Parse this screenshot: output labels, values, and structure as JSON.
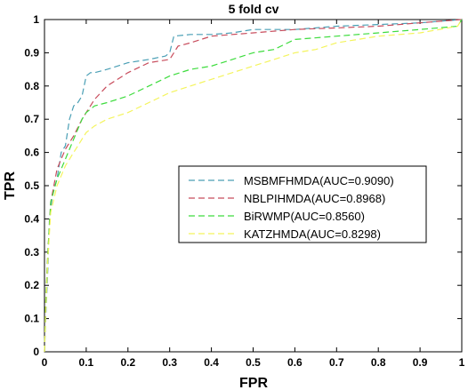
{
  "chart_data": {
    "type": "line",
    "title": "5 fold cv",
    "xlabel": "FPR",
    "ylabel": "TPR",
    "xlim": [
      0,
      1
    ],
    "ylim": [
      0,
      1
    ],
    "x_ticks": [
      "0",
      "0.1",
      "0.2",
      "0.3",
      "0.4",
      "0.5",
      "0.6",
      "0.7",
      "0.8",
      "0.9",
      "1"
    ],
    "y_ticks": [
      "0",
      "0.1",
      "0.2",
      "0.3",
      "0.4",
      "0.5",
      "0.6",
      "0.7",
      "0.8",
      "0.9",
      "1"
    ],
    "grid": false,
    "legend_position": "center-right",
    "series": [
      {
        "name": "MSBMFHMDA(AUC=0.9090)",
        "color": "#4a9fb5",
        "x": [
          0,
          0.003,
          0.008,
          0.012,
          0.02,
          0.03,
          0.04,
          0.05,
          0.06,
          0.07,
          0.08,
          0.09,
          0.1,
          0.11,
          0.12,
          0.15,
          0.2,
          0.25,
          0.29,
          0.3,
          0.31,
          0.35,
          0.4,
          0.45,
          0.5,
          0.55,
          0.6,
          0.7,
          0.8,
          0.9,
          1.0
        ],
        "y": [
          0,
          0.1,
          0.25,
          0.4,
          0.48,
          0.52,
          0.6,
          0.62,
          0.7,
          0.74,
          0.75,
          0.77,
          0.83,
          0.84,
          0.84,
          0.85,
          0.87,
          0.88,
          0.89,
          0.9,
          0.95,
          0.955,
          0.955,
          0.96,
          0.97,
          0.97,
          0.97,
          0.98,
          0.985,
          0.99,
          1.0
        ]
      },
      {
        "name": "NBLPIHMDA(AUC=0.8968)",
        "color": "#c84c5c",
        "x": [
          0,
          0.003,
          0.008,
          0.015,
          0.03,
          0.05,
          0.07,
          0.09,
          0.1,
          0.12,
          0.15,
          0.2,
          0.25,
          0.3,
          0.32,
          0.35,
          0.4,
          0.5,
          0.6,
          0.7,
          0.8,
          0.9,
          1.0
        ],
        "y": [
          0,
          0.15,
          0.3,
          0.45,
          0.55,
          0.61,
          0.65,
          0.7,
          0.72,
          0.76,
          0.8,
          0.84,
          0.87,
          0.88,
          0.92,
          0.93,
          0.95,
          0.96,
          0.97,
          0.975,
          0.98,
          0.99,
          1.0
        ]
      },
      {
        "name": "BiRWMP(AUC=0.8560)",
        "color": "#3ddc3d",
        "x": [
          0,
          0.003,
          0.008,
          0.015,
          0.03,
          0.05,
          0.07,
          0.09,
          0.1,
          0.12,
          0.15,
          0.2,
          0.25,
          0.3,
          0.35,
          0.4,
          0.45,
          0.5,
          0.55,
          0.6,
          0.7,
          0.8,
          0.9,
          0.99,
          1.0
        ],
        "y": [
          0,
          0.15,
          0.3,
          0.45,
          0.52,
          0.58,
          0.64,
          0.7,
          0.72,
          0.74,
          0.75,
          0.77,
          0.8,
          0.83,
          0.85,
          0.86,
          0.88,
          0.9,
          0.91,
          0.94,
          0.95,
          0.96,
          0.97,
          0.98,
          1.0
        ]
      },
      {
        "name": "KATZHMDA(AUC=0.8298)",
        "color": "#f4f45c",
        "x": [
          0,
          0.003,
          0.008,
          0.015,
          0.03,
          0.05,
          0.07,
          0.09,
          0.1,
          0.12,
          0.15,
          0.2,
          0.25,
          0.3,
          0.35,
          0.4,
          0.45,
          0.5,
          0.55,
          0.6,
          0.65,
          0.7,
          0.8,
          0.9,
          0.99,
          1.0
        ],
        "y": [
          0,
          0.12,
          0.28,
          0.42,
          0.5,
          0.56,
          0.6,
          0.64,
          0.66,
          0.68,
          0.7,
          0.72,
          0.75,
          0.78,
          0.8,
          0.82,
          0.84,
          0.86,
          0.88,
          0.9,
          0.91,
          0.93,
          0.95,
          0.96,
          0.98,
          1.0
        ]
      }
    ]
  }
}
